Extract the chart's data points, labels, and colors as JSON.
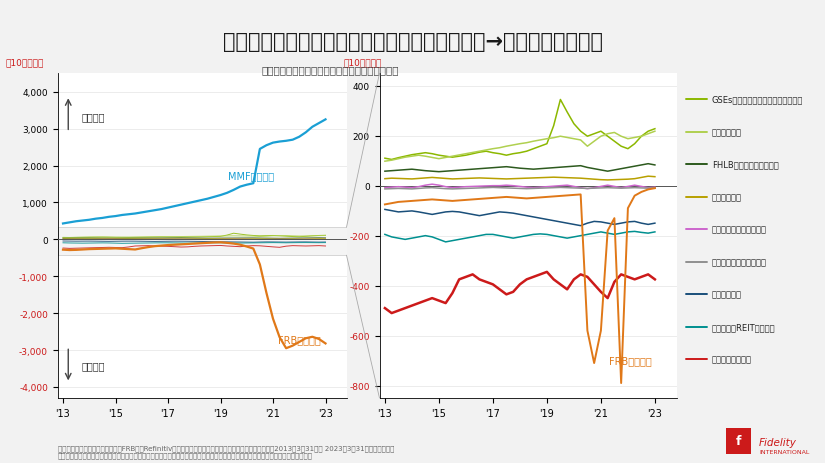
{
  "title": "翌日物資金貸借市場における主なプレーヤー（→ネット・ベース）",
  "subtitle": "レポ市場・フェデラルファンド市場のネット残高",
  "ylabel_left": "（10億ドル）",
  "ylabel_right": "（10億ドル）",
  "left_ylim": [
    -4300,
    4500
  ],
  "right_ylim": [
    -850,
    450
  ],
  "left_yticks": [
    -4000,
    -3000,
    -2000,
    -1000,
    0,
    1000,
    2000,
    3000,
    4000
  ],
  "right_yticks": [
    -800,
    -600,
    -400,
    -200,
    0,
    200,
    400
  ],
  "xtick_labels": [
    "'13",
    "'15",
    "'17",
    "'19",
    "'21",
    "'23"
  ],
  "background_color": "#f2f2f2",
  "plot_bg_color": "#ffffff",
  "title_color": "#1a1a1a",
  "footnote": "（出所）米連邦準備制度理事会（FRB）、Refinitiv、フィデリティ・インスティテュート。（注）期間：2013年3月31日～ 2023年3月31日、四半期次。\nあらゆる記述やチャートは、例示目的もしくは過去の実績であり、将来の傾向、数値等を保証もしくは示唆するものではありません。",
  "colors": {
    "MMF": "#1a9fd4",
    "FRB": "#e07818",
    "GSEs": "#8cb800",
    "overseas": "#b0d050",
    "FHLB": "#2d5a1e",
    "bank_repo": "#b8a000",
    "bank_ff": "#cc66cc",
    "foreign_ff": "#909090",
    "foreign_repo": "#1a4f7a",
    "mortgage": "#009090",
    "securities": "#cc1a1a",
    "red_axis": "#cc1a1a",
    "grid": "#dddddd",
    "zero_line": "#555555",
    "rect_edge": "#aaaaaa",
    "zoom_line": "#aaaaaa",
    "arrow": "#444444",
    "footnote": "#666666",
    "fidelity_red": "#cc1a1a"
  },
  "legend": [
    {
      "label": "GSEs（レポとフェドファンズ両方）",
      "color": "#8cb800"
    },
    {
      "label": "海外（レポ）",
      "color": "#b0d050"
    },
    {
      "label": "FHLB（フェドファンズ）",
      "color": "#2d5a1e"
    },
    {
      "label": "銀行（レポ）",
      "color": "#b8a000"
    },
    {
      "label": "銀行（フェドファンズ）",
      "color": "#cc66cc"
    },
    {
      "label": "外銀（フェドファンズ）",
      "color": "#909090"
    },
    {
      "label": "外銀（レポ）",
      "color": "#1a4f7a"
    },
    {
      "label": "モーゲージREIT（レポ）",
      "color": "#009090"
    },
    {
      "label": "証券会社（レポ）",
      "color": "#cc1a1a"
    }
  ]
}
